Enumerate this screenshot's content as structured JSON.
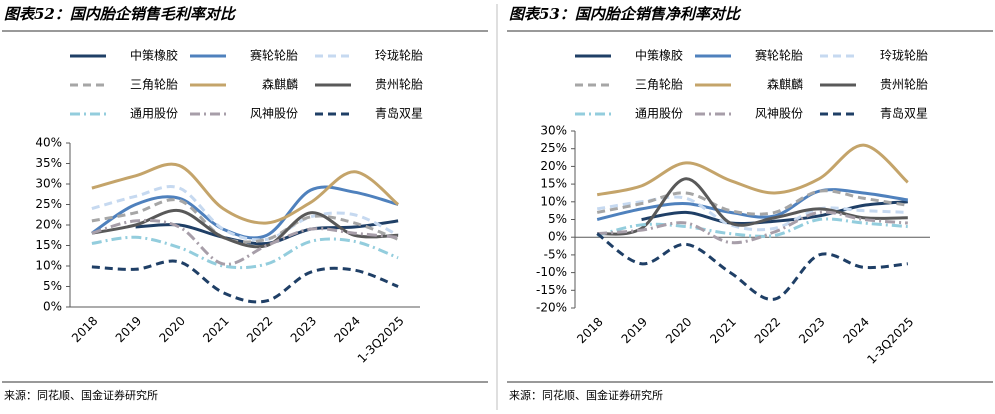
{
  "chart_data": [
    {
      "type": "line",
      "title": "图表52：国内胎企销售毛利率对比",
      "source": "来源：同花顺、国金证券研究所",
      "categories": [
        "2018",
        "2019",
        "2020",
        "2021",
        "2022",
        "2023",
        "2024",
        "1-3Q2025"
      ],
      "ylim": [
        0,
        40
      ],
      "yticks": [
        {
          "value": 0,
          "label": "0%"
        },
        {
          "value": 5,
          "label": "5%"
        },
        {
          "value": 10,
          "label": "10%"
        },
        {
          "value": 15,
          "label": "15%"
        },
        {
          "value": 20,
          "label": "20%"
        },
        {
          "value": 25,
          "label": "25%"
        },
        {
          "value": 30,
          "label": "30%"
        },
        {
          "value": 35,
          "label": "35%"
        },
        {
          "value": 40,
          "label": "40%"
        }
      ],
      "series": [
        {
          "name": "中策橡胶",
          "color": "#1f3f66",
          "style": "solid",
          "values": [
            null,
            19.5,
            20,
            17,
            15.5,
            19,
            19.5,
            21
          ]
        },
        {
          "name": "赛轮轮胎",
          "color": "#4f81bd",
          "style": "solid",
          "values": [
            18,
            25,
            26.5,
            19,
            17.5,
            28.5,
            28,
            25
          ]
        },
        {
          "name": "玲珑轮胎",
          "color": "#c6d9f0",
          "style": "dashed",
          "values": [
            24,
            27,
            29,
            19,
            16.5,
            22,
            22.5,
            17.5
          ]
        },
        {
          "name": "三角轮胎",
          "color": "#a6a6a6",
          "style": "dashed",
          "values": [
            21,
            23,
            26,
            17,
            16.5,
            22,
            20.5,
            16.5
          ]
        },
        {
          "name": "森麒麟",
          "color": "#c4a46a",
          "style": "solid",
          "values": [
            29,
            32,
            34.5,
            24,
            20.5,
            25.5,
            33,
            25
          ]
        },
        {
          "name": "贵州轮胎",
          "color": "#595959",
          "style": "solid",
          "values": [
            18,
            20,
            23.5,
            17,
            15,
            23,
            17.5,
            17.5
          ]
        },
        {
          "name": "通用股份",
          "color": "#93cddd",
          "style": "dashdot",
          "values": [
            15.5,
            17,
            14.5,
            10,
            10.5,
            16,
            16,
            12
          ]
        },
        {
          "name": "风神股份",
          "color": "#a79ea9",
          "style": "dashdot",
          "values": [
            18,
            21,
            19.5,
            10.5,
            15,
            19,
            18,
            17
          ]
        },
        {
          "name": "青岛双星",
          "color": "#1f3f66",
          "style": "dashed",
          "values": [
            9.8,
            9.2,
            11,
            3.5,
            1.5,
            8.5,
            9,
            5
          ]
        }
      ]
    },
    {
      "type": "line",
      "title": "图表53：国内胎企销售净利率对比",
      "source": "来源：同花顺、国金证券研究所",
      "categories": [
        "2018",
        "2019",
        "2020",
        "2021",
        "2022",
        "2023",
        "2024",
        "1-3Q2025"
      ],
      "ylim": [
        -20,
        30
      ],
      "yticks": [
        {
          "value": -20,
          "label": "-20%"
        },
        {
          "value": -15,
          "label": "-15%"
        },
        {
          "value": -10,
          "label": "-10%"
        },
        {
          "value": -5,
          "label": "-5%"
        },
        {
          "value": 0,
          "label": "0%"
        },
        {
          "value": 5,
          "label": "5%"
        },
        {
          "value": 10,
          "label": "10%"
        },
        {
          "value": 15,
          "label": "15%"
        },
        {
          "value": 20,
          "label": "20%"
        },
        {
          "value": 25,
          "label": "25%"
        },
        {
          "value": 30,
          "label": "30%"
        }
      ],
      "series": [
        {
          "name": "中策橡胶",
          "color": "#1f3f66",
          "style": "solid",
          "values": [
            null,
            5,
            7,
            4,
            4.5,
            6,
            9,
            10
          ]
        },
        {
          "name": "赛轮轮胎",
          "color": "#4f81bd",
          "style": "solid",
          "values": [
            5,
            8,
            9.5,
            7,
            6,
            13,
            12.5,
            10.5
          ]
        },
        {
          "name": "玲珑轮胎",
          "color": "#c6d9f0",
          "style": "dashed",
          "values": [
            8,
            10,
            11,
            3.5,
            2.5,
            8,
            7.5,
            7
          ]
        },
        {
          "name": "三角轮胎",
          "color": "#a6a6a6",
          "style": "dashed",
          "values": [
            7,
            9.5,
            12.5,
            7.5,
            7,
            13,
            11,
            9
          ]
        },
        {
          "name": "森麒麟",
          "color": "#c4a46a",
          "style": "solid",
          "values": [
            12,
            14.5,
            21,
            16,
            12.5,
            16.5,
            26,
            15.5
          ]
        },
        {
          "name": "贵州轮胎",
          "color": "#595959",
          "style": "solid",
          "values": [
            1,
            2.5,
            16.5,
            4,
            5.5,
            8,
            5.5,
            5.5
          ]
        },
        {
          "name": "通用股份",
          "color": "#93cddd",
          "style": "dashdot",
          "values": [
            0.5,
            3.5,
            3,
            1,
            0.5,
            5,
            4,
            3
          ]
        },
        {
          "name": "风神股份",
          "color": "#a79ea9",
          "style": "dashdot",
          "values": [
            1,
            2,
            4,
            -1.5,
            1.5,
            7,
            5,
            4
          ]
        },
        {
          "name": "青岛双星",
          "color": "#1f3f66",
          "style": "dashed",
          "values": [
            1,
            -7.5,
            -2,
            -10,
            -17.5,
            -5,
            -8.5,
            -7.5
          ]
        }
      ]
    }
  ]
}
